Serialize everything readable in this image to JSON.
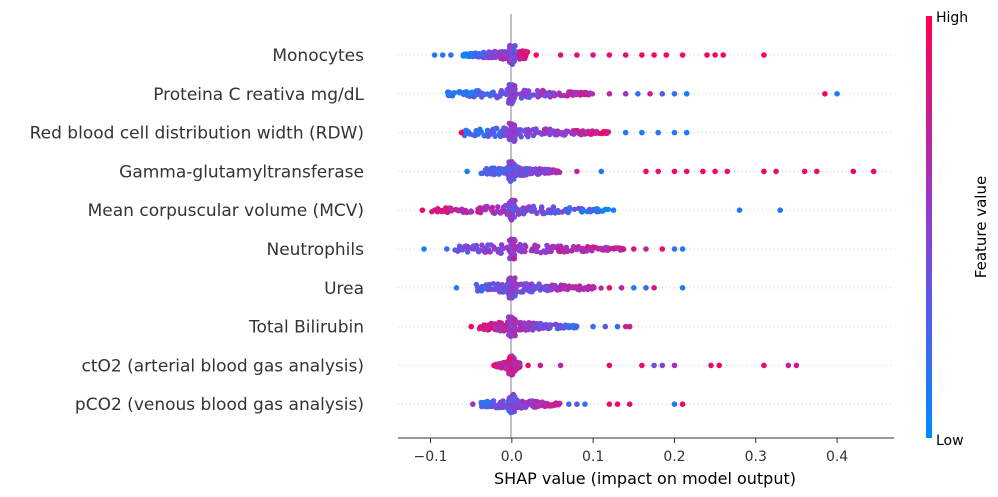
{
  "chart_data": {
    "type": "scatter",
    "subtype": "shap-beeswarm-summary",
    "xlabel": "SHAP value (impact on model output)",
    "xlim": [
      -0.14,
      0.47
    ],
    "xticks": [
      {
        "value": -0.1,
        "label": "−0.1"
      },
      {
        "value": 0.0,
        "label": "0.0"
      },
      {
        "value": 0.1,
        "label": "0.1"
      },
      {
        "value": 0.2,
        "label": "0.2"
      },
      {
        "value": 0.3,
        "label": "0.3"
      },
      {
        "value": 0.4,
        "label": "0.4"
      }
    ],
    "colorbar": {
      "label": "Feature value",
      "high_label": "High",
      "low_label": "Low",
      "low_color": "#008bfb",
      "high_color": "#ff0052"
    },
    "features": [
      {
        "name": "Monocytes",
        "core": {
          "min": -0.06,
          "max": 0.02,
          "color_low": 0.1,
          "color_high": 0.9
        },
        "points": [
          {
            "x": -0.095,
            "c": 0.1
          },
          {
            "x": -0.085,
            "c": 0.15
          },
          {
            "x": -0.075,
            "c": 0.2
          },
          {
            "x": -0.05,
            "c": 0.1
          },
          {
            "x": -0.04,
            "c": 0.15
          },
          {
            "x": 0.03,
            "c": 0.9
          },
          {
            "x": 0.06,
            "c": 0.85
          },
          {
            "x": 0.08,
            "c": 0.9
          },
          {
            "x": 0.1,
            "c": 0.8
          },
          {
            "x": 0.12,
            "c": 0.9
          },
          {
            "x": 0.14,
            "c": 0.85
          },
          {
            "x": 0.16,
            "c": 0.95
          },
          {
            "x": 0.175,
            "c": 0.9
          },
          {
            "x": 0.19,
            "c": 0.95
          },
          {
            "x": 0.21,
            "c": 0.9
          },
          {
            "x": 0.24,
            "c": 0.95
          },
          {
            "x": 0.25,
            "c": 0.9
          },
          {
            "x": 0.26,
            "c": 0.95
          },
          {
            "x": 0.31,
            "c": 0.95
          }
        ]
      },
      {
        "name": "Proteina C reativa mg/dL",
        "core": {
          "min": -0.08,
          "max": 0.1,
          "color_low": 0.1,
          "color_high": 0.75
        },
        "points": [
          {
            "x": -0.078,
            "c": 0.1
          },
          {
            "x": 0.12,
            "c": 0.7
          },
          {
            "x": 0.14,
            "c": 0.6
          },
          {
            "x": 0.155,
            "c": 0.2
          },
          {
            "x": 0.17,
            "c": 0.75
          },
          {
            "x": 0.185,
            "c": 0.3
          },
          {
            "x": 0.2,
            "c": 0.2
          },
          {
            "x": 0.215,
            "c": 0.1
          },
          {
            "x": 0.385,
            "c": 0.95
          },
          {
            "x": 0.4,
            "c": 0.1
          }
        ]
      },
      {
        "name": "Red blood cell distribution width (RDW)",
        "core": {
          "min": -0.06,
          "max": 0.12,
          "color_low": 0.1,
          "color_high": 0.85
        },
        "points": [
          {
            "x": -0.062,
            "c": 0.9
          },
          {
            "x": 0.14,
            "c": 0.1
          },
          {
            "x": 0.16,
            "c": 0.1
          },
          {
            "x": 0.18,
            "c": 0.15
          },
          {
            "x": 0.2,
            "c": 0.1
          },
          {
            "x": 0.215,
            "c": 0.1
          }
        ]
      },
      {
        "name": "Gamma-glutamyltransferase ",
        "core": {
          "min": -0.04,
          "max": 0.06,
          "color_low": 0.2,
          "color_high": 0.6
        },
        "points": [
          {
            "x": -0.055,
            "c": 0.1
          },
          {
            "x": 0.08,
            "c": 0.7
          },
          {
            "x": 0.11,
            "c": 0.1
          },
          {
            "x": 0.165,
            "c": 0.95
          },
          {
            "x": 0.18,
            "c": 0.9
          },
          {
            "x": 0.2,
            "c": 0.95
          },
          {
            "x": 0.215,
            "c": 0.9
          },
          {
            "x": 0.235,
            "c": 0.95
          },
          {
            "x": 0.25,
            "c": 0.95
          },
          {
            "x": 0.265,
            "c": 0.9
          },
          {
            "x": 0.31,
            "c": 0.95
          },
          {
            "x": 0.325,
            "c": 0.9
          },
          {
            "x": 0.36,
            "c": 0.95
          },
          {
            "x": 0.375,
            "c": 0.9
          },
          {
            "x": 0.42,
            "c": 0.95
          },
          {
            "x": 0.445,
            "c": 0.95
          }
        ]
      },
      {
        "name": "Mean corpuscular volume (MCV)",
        "core": {
          "min": -0.1,
          "max": 0.12,
          "color_low": 0.85,
          "color_high": 0.1
        },
        "points": [
          {
            "x": -0.11,
            "c": 0.9
          },
          {
            "x": -0.095,
            "c": 0.85
          },
          {
            "x": 0.125,
            "c": 0.1
          },
          {
            "x": 0.28,
            "c": 0.1
          },
          {
            "x": 0.33,
            "c": 0.1
          }
        ]
      },
      {
        "name": "Neutrophils",
        "core": {
          "min": -0.07,
          "max": 0.14,
          "color_low": 0.4,
          "color_high": 0.75
        },
        "points": [
          {
            "x": -0.108,
            "c": 0.1
          },
          {
            "x": -0.08,
            "c": 0.2
          },
          {
            "x": 0.15,
            "c": 0.8
          },
          {
            "x": 0.165,
            "c": 0.7
          },
          {
            "x": 0.185,
            "c": 0.9
          },
          {
            "x": 0.2,
            "c": 0.2
          },
          {
            "x": 0.21,
            "c": 0.15
          }
        ]
      },
      {
        "name": "Urea",
        "core": {
          "min": -0.045,
          "max": 0.11,
          "color_low": 0.3,
          "color_high": 0.7
        },
        "points": [
          {
            "x": -0.068,
            "c": 0.1
          },
          {
            "x": 0.12,
            "c": 0.9
          },
          {
            "x": 0.135,
            "c": 0.7
          },
          {
            "x": 0.15,
            "c": 0.1
          },
          {
            "x": 0.165,
            "c": 0.2
          },
          {
            "x": 0.175,
            "c": 0.8
          },
          {
            "x": 0.21,
            "c": 0.1
          }
        ]
      },
      {
        "name": "Total Bilirubin",
        "core": {
          "min": -0.04,
          "max": 0.08,
          "color_low": 0.85,
          "color_high": 0.2
        },
        "points": [
          {
            "x": -0.05,
            "c": 0.95
          },
          {
            "x": 0.1,
            "c": 0.2
          },
          {
            "x": 0.115,
            "c": 0.3
          },
          {
            "x": 0.13,
            "c": 0.2
          },
          {
            "x": 0.14,
            "c": 0.7
          },
          {
            "x": 0.145,
            "c": 0.8
          }
        ]
      },
      {
        "name": "ctO2 (arterial blood gas analysis)",
        "core": {
          "min": -0.02,
          "max": 0.01,
          "color_low": 0.7,
          "color_high": 0.75
        },
        "points": [
          {
            "x": -0.022,
            "c": 0.9
          },
          {
            "x": 0.02,
            "c": 0.9
          },
          {
            "x": 0.035,
            "c": 0.8
          },
          {
            "x": 0.06,
            "c": 0.7
          },
          {
            "x": 0.12,
            "c": 0.9
          },
          {
            "x": 0.16,
            "c": 0.9
          },
          {
            "x": 0.175,
            "c": 0.4
          },
          {
            "x": 0.185,
            "c": 0.5
          },
          {
            "x": 0.2,
            "c": 0.6
          },
          {
            "x": 0.245,
            "c": 0.9
          },
          {
            "x": 0.255,
            "c": 0.95
          },
          {
            "x": 0.31,
            "c": 0.9
          },
          {
            "x": 0.34,
            "c": 0.7
          },
          {
            "x": 0.35,
            "c": 0.8
          }
        ]
      },
      {
        "name": "pCO2 (venous blood gas analysis)",
        "core": {
          "min": -0.04,
          "max": 0.06,
          "color_low": 0.2,
          "color_high": 0.75
        },
        "points": [
          {
            "x": -0.048,
            "c": 0.6
          },
          {
            "x": 0.07,
            "c": 0.2
          },
          {
            "x": 0.08,
            "c": 0.3
          },
          {
            "x": 0.09,
            "c": 0.2
          },
          {
            "x": 0.12,
            "c": 0.9
          },
          {
            "x": 0.13,
            "c": 0.95
          },
          {
            "x": 0.145,
            "c": 0.9
          },
          {
            "x": 0.2,
            "c": 0.1
          },
          {
            "x": 0.21,
            "c": 0.95
          }
        ]
      }
    ]
  }
}
